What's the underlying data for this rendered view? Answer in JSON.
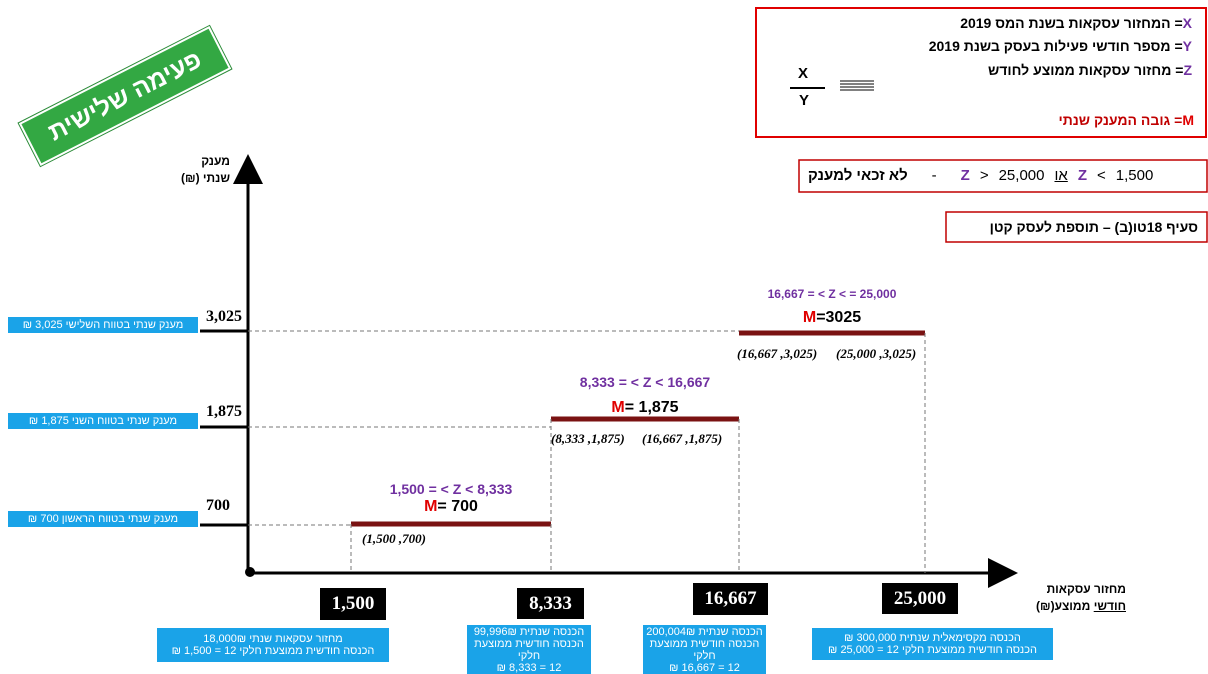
{
  "banner": "פעימה שלישית",
  "legend": {
    "lines": [
      {
        "symbol": "X",
        "text": "= המחזור עסקאות בשנת המס 2019"
      },
      {
        "symbol": "Y",
        "text": "= מספר חודשי פעילות בעסק בשנת 2019"
      },
      {
        "symbol": "Z",
        "text": "= מחזור עסקאות ממוצע לחודש"
      }
    ],
    "fraction": {
      "numerator": "X",
      "denominator": "Y"
    },
    "m_line": {
      "symbol": "M",
      "text": "= גובה המענק שנתי"
    }
  },
  "ineligible": {
    "conditions": [
      {
        "symbol": "Z",
        "operator": ">",
        "value": "25,000"
      },
      {
        "symbol": "Z",
        "operator": "<",
        "value": "1,500"
      }
    ],
    "or": "או",
    "dash": "-",
    "text": "לא זכאי למענק"
  },
  "section_note": "סעיף 18טו(ב) – תוספת לעסק קטן",
  "y_axis_label": [
    "מענק",
    "שנתי (₪)"
  ],
  "x_axis_label": {
    "line1": "מחזור עסקאות",
    "underlined": "חודשי",
    "rest": "ממוצע(₪)"
  },
  "levels": [
    {
      "tick": "700",
      "note": "מענק שנתי בטווח הראשון 700 ₪"
    },
    {
      "tick": "1,875",
      "note": "מענק שנתי בטווח השני 1,875 ₪"
    },
    {
      "tick": "3,025",
      "note": "מענק שנתי בטווח השלישי 3,025 ₪"
    }
  ],
  "steps": [
    {
      "range": "1,500 = < Z < 8,333",
      "m_symbol": "M",
      "m_text": "= 700",
      "points": [
        "(1,500 ,700)"
      ]
    },
    {
      "range": "8,333 = < Z < 16,667",
      "m_symbol": "M",
      "m_text": "= 1,875",
      "points": [
        "(8,333 ,1,875)",
        "(16,667 ,1,875)"
      ]
    },
    {
      "range": "16,667 = < Z < = 25,000",
      "m_symbol": "M",
      "m_text": "=3025",
      "points": [
        "(16,667 ,3,025)",
        "(25,000 ,3,025)"
      ]
    }
  ],
  "x_ticks": [
    {
      "label": "1,500",
      "note": [
        "מחזור עסקאות שנתי 18,000₪",
        "הכנסה חודשית ממוצעת חלקי 12 = 1,500 ₪"
      ]
    },
    {
      "label": "8,333",
      "note": [
        "הכנסה שנתית 99,996₪",
        "הכנסה חודשית ממוצעת חלקי",
        "12 = 8,333 ₪"
      ]
    },
    {
      "label": "16,667",
      "note": [
        "הכנסה שנתית 200,004₪",
        "הכנסה חודשית ממוצעת חלקי",
        "12 = 16,667 ₪"
      ]
    },
    {
      "label": "25,000",
      "note": [
        "הכנסה מקסימאלית שנתית 300,000 ₪",
        "הכנסה חודשית ממוצעת חלקי 12 = 25,000 ₪"
      ]
    }
  ]
}
